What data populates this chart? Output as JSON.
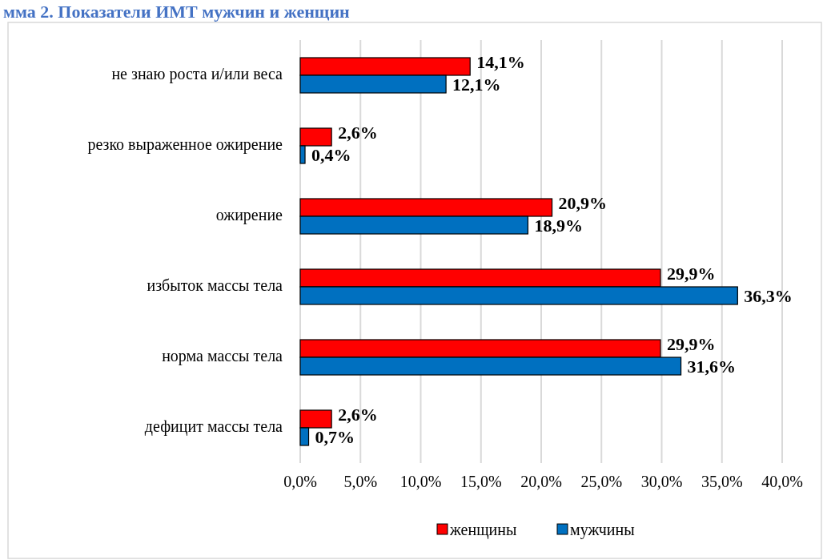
{
  "chart_data": {
    "type": "bar",
    "orientation": "horizontal",
    "title": "мма 2. Показатели ИМТ мужчин и женщин",
    "categories": [
      "не знаю роста и/или веса",
      "резко выраженное ожирение",
      "ожирение",
      "избыток массы тела",
      "норма массы тела",
      "дефицит массы тела"
    ],
    "series": [
      {
        "name": "женщины",
        "color": "#ff0000",
        "values": [
          14.1,
          2.6,
          20.9,
          29.9,
          29.9,
          2.6
        ],
        "value_labels": [
          "14,1%",
          "2,6%",
          "20,9%",
          "29,9%",
          "29,9%",
          "2,6%"
        ]
      },
      {
        "name": "мужчины",
        "color": "#0070c0",
        "values": [
          12.1,
          0.4,
          18.9,
          36.3,
          31.6,
          0.7
        ],
        "value_labels": [
          "12,1%",
          "0,4%",
          "18,9%",
          "36,3%",
          "31,6%",
          "0,7%"
        ]
      }
    ],
    "xlim": [
      0,
      40
    ],
    "xticks": [
      {
        "value": 0,
        "label": "0,0%"
      },
      {
        "value": 5,
        "label": "5,0%"
      },
      {
        "value": 10,
        "label": "10,0%"
      },
      {
        "value": 15,
        "label": "15,0%"
      },
      {
        "value": 20,
        "label": "20,0%"
      },
      {
        "value": 25,
        "label": "25,0%"
      },
      {
        "value": 30,
        "label": "30,0%"
      },
      {
        "value": 35,
        "label": "35,0%"
      },
      {
        "value": 40,
        "label": "40,0%"
      }
    ],
    "grid": "x",
    "legend": "bottom"
  }
}
